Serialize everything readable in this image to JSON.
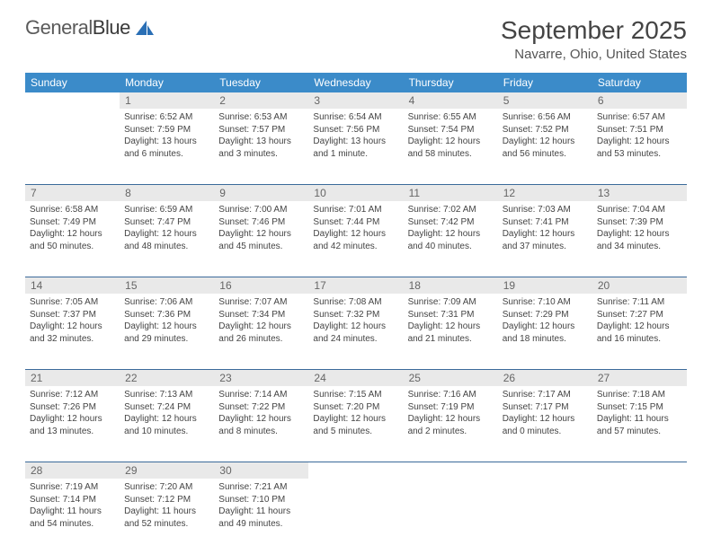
{
  "logo": {
    "text1": "General",
    "text2": "Blue"
  },
  "title": "September 2025",
  "location": "Navarre, Ohio, United States",
  "day_names": [
    "Sunday",
    "Monday",
    "Tuesday",
    "Wednesday",
    "Thursday",
    "Friday",
    "Saturday"
  ],
  "header_bg": "#3b8bc9",
  "daynum_bg": "#e9e9e9",
  "divider_color": "#3b6a9a",
  "logo_accent": "#2a6fb5",
  "weeks": [
    {
      "nums": [
        "",
        "1",
        "2",
        "3",
        "4",
        "5",
        "6"
      ],
      "cells": [
        null,
        {
          "sunrise": "6:52 AM",
          "sunset": "7:59 PM",
          "daylight": "13 hours and 6 minutes."
        },
        {
          "sunrise": "6:53 AM",
          "sunset": "7:57 PM",
          "daylight": "13 hours and 3 minutes."
        },
        {
          "sunrise": "6:54 AM",
          "sunset": "7:56 PM",
          "daylight": "13 hours and 1 minute."
        },
        {
          "sunrise": "6:55 AM",
          "sunset": "7:54 PM",
          "daylight": "12 hours and 58 minutes."
        },
        {
          "sunrise": "6:56 AM",
          "sunset": "7:52 PM",
          "daylight": "12 hours and 56 minutes."
        },
        {
          "sunrise": "6:57 AM",
          "sunset": "7:51 PM",
          "daylight": "12 hours and 53 minutes."
        }
      ]
    },
    {
      "nums": [
        "7",
        "8",
        "9",
        "10",
        "11",
        "12",
        "13"
      ],
      "cells": [
        {
          "sunrise": "6:58 AM",
          "sunset": "7:49 PM",
          "daylight": "12 hours and 50 minutes."
        },
        {
          "sunrise": "6:59 AM",
          "sunset": "7:47 PM",
          "daylight": "12 hours and 48 minutes."
        },
        {
          "sunrise": "7:00 AM",
          "sunset": "7:46 PM",
          "daylight": "12 hours and 45 minutes."
        },
        {
          "sunrise": "7:01 AM",
          "sunset": "7:44 PM",
          "daylight": "12 hours and 42 minutes."
        },
        {
          "sunrise": "7:02 AM",
          "sunset": "7:42 PM",
          "daylight": "12 hours and 40 minutes."
        },
        {
          "sunrise": "7:03 AM",
          "sunset": "7:41 PM",
          "daylight": "12 hours and 37 minutes."
        },
        {
          "sunrise": "7:04 AM",
          "sunset": "7:39 PM",
          "daylight": "12 hours and 34 minutes."
        }
      ]
    },
    {
      "nums": [
        "14",
        "15",
        "16",
        "17",
        "18",
        "19",
        "20"
      ],
      "cells": [
        {
          "sunrise": "7:05 AM",
          "sunset": "7:37 PM",
          "daylight": "12 hours and 32 minutes."
        },
        {
          "sunrise": "7:06 AM",
          "sunset": "7:36 PM",
          "daylight": "12 hours and 29 minutes."
        },
        {
          "sunrise": "7:07 AM",
          "sunset": "7:34 PM",
          "daylight": "12 hours and 26 minutes."
        },
        {
          "sunrise": "7:08 AM",
          "sunset": "7:32 PM",
          "daylight": "12 hours and 24 minutes."
        },
        {
          "sunrise": "7:09 AM",
          "sunset": "7:31 PM",
          "daylight": "12 hours and 21 minutes."
        },
        {
          "sunrise": "7:10 AM",
          "sunset": "7:29 PM",
          "daylight": "12 hours and 18 minutes."
        },
        {
          "sunrise": "7:11 AM",
          "sunset": "7:27 PM",
          "daylight": "12 hours and 16 minutes."
        }
      ]
    },
    {
      "nums": [
        "21",
        "22",
        "23",
        "24",
        "25",
        "26",
        "27"
      ],
      "cells": [
        {
          "sunrise": "7:12 AM",
          "sunset": "7:26 PM",
          "daylight": "12 hours and 13 minutes."
        },
        {
          "sunrise": "7:13 AM",
          "sunset": "7:24 PM",
          "daylight": "12 hours and 10 minutes."
        },
        {
          "sunrise": "7:14 AM",
          "sunset": "7:22 PM",
          "daylight": "12 hours and 8 minutes."
        },
        {
          "sunrise": "7:15 AM",
          "sunset": "7:20 PM",
          "daylight": "12 hours and 5 minutes."
        },
        {
          "sunrise": "7:16 AM",
          "sunset": "7:19 PM",
          "daylight": "12 hours and 2 minutes."
        },
        {
          "sunrise": "7:17 AM",
          "sunset": "7:17 PM",
          "daylight": "12 hours and 0 minutes."
        },
        {
          "sunrise": "7:18 AM",
          "sunset": "7:15 PM",
          "daylight": "11 hours and 57 minutes."
        }
      ]
    },
    {
      "nums": [
        "28",
        "29",
        "30",
        "",
        "",
        "",
        ""
      ],
      "cells": [
        {
          "sunrise": "7:19 AM",
          "sunset": "7:14 PM",
          "daylight": "11 hours and 54 minutes."
        },
        {
          "sunrise": "7:20 AM",
          "sunset": "7:12 PM",
          "daylight": "11 hours and 52 minutes."
        },
        {
          "sunrise": "7:21 AM",
          "sunset": "7:10 PM",
          "daylight": "11 hours and 49 minutes."
        },
        null,
        null,
        null,
        null
      ]
    }
  ],
  "labels": {
    "sunrise": "Sunrise:",
    "sunset": "Sunset:",
    "daylight": "Daylight:"
  }
}
